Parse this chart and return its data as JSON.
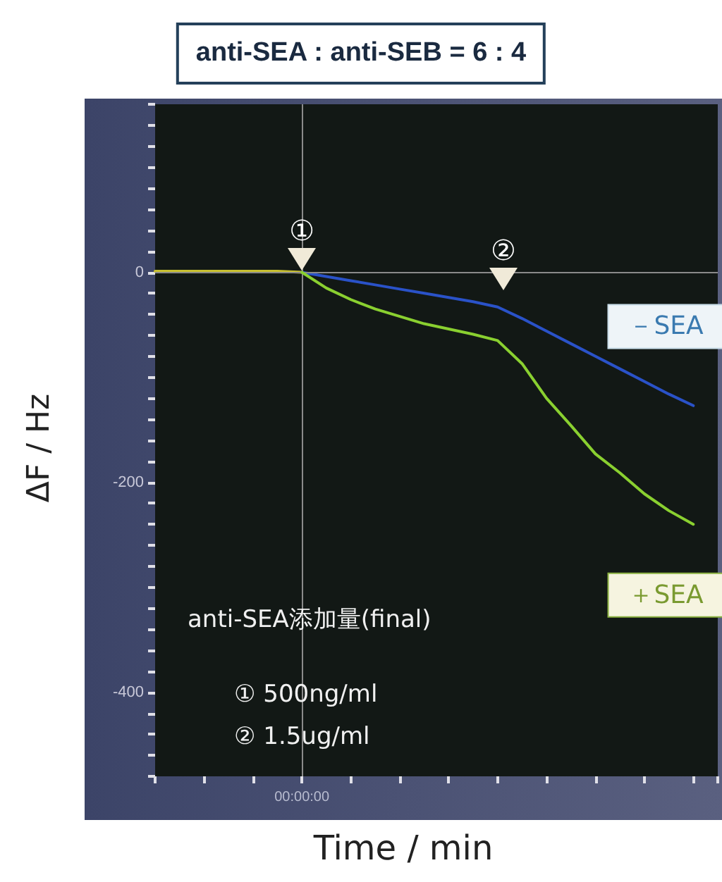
{
  "chart_data": {
    "type": "line",
    "title": "anti-SEA : anti-SEB = 6 : 4",
    "xlabel": "Time / min",
    "ylabel": "ΔF / Hz",
    "categories": [
      null,
      null,
      null,
      null,
      null,
      null,
      "00:00:00",
      null,
      null,
      null,
      null,
      null,
      null,
      null,
      null,
      null,
      null,
      null,
      null,
      null,
      null,
      null,
      null,
      null
    ],
    "ylim": [
      -480,
      160
    ],
    "yticks": [
      {
        "value": -480,
        "label": null
      },
      {
        "value": -460,
        "label": null
      },
      {
        "value": -440,
        "label": null
      },
      {
        "value": -420,
        "label": null
      },
      -400,
      {
        "value": -380,
        "label": null
      },
      {
        "value": -360,
        "label": null
      },
      {
        "value": -340,
        "label": null
      },
      {
        "value": -320,
        "label": null
      },
      {
        "value": -300,
        "label": null
      },
      {
        "value": -280,
        "label": null
      },
      {
        "value": -260,
        "label": null
      },
      {
        "value": -240,
        "label": null
      },
      {
        "value": -220,
        "label": null
      },
      -200,
      {
        "value": -180,
        "label": null
      },
      {
        "value": -160,
        "label": null
      },
      {
        "value": -140,
        "label": null
      },
      {
        "value": -120,
        "label": null
      },
      {
        "value": -100,
        "label": null
      },
      {
        "value": -80,
        "label": null
      },
      {
        "value": -60,
        "label": null
      },
      {
        "value": -40,
        "label": null
      },
      {
        "value": -20,
        "label": null
      },
      0,
      {
        "value": 20,
        "label": null
      },
      {
        "value": 40,
        "label": null
      },
      {
        "value": 60,
        "label": null
      },
      {
        "value": 80,
        "label": null
      },
      {
        "value": 100,
        "label": null
      },
      {
        "value": 120,
        "label": null
      },
      {
        "value": 140,
        "label": null
      },
      {
        "value": 160,
        "label": null
      }
    ],
    "grid": false,
    "marker": "none",
    "line_style": "solid",
    "series": [
      {
        "color": "#c8c030",
        "values": [
          1,
          1,
          1,
          1,
          1,
          1,
          0,
          null,
          null,
          null,
          null,
          null,
          null,
          null,
          null,
          null,
          null,
          null,
          null,
          null,
          null,
          null,
          null,
          null
        ]
      },
      {
        "name": "－SEA",
        "color": "#2a52c8",
        "values": [
          null,
          null,
          null,
          null,
          null,
          null,
          0,
          -4,
          -8,
          -12,
          -16,
          -20,
          -24,
          -28,
          -33,
          -44,
          -56,
          -68,
          -80,
          -92,
          -104,
          -116,
          -127,
          null
        ]
      },
      {
        "name": "＋SEA",
        "color": "#8ad030",
        "values": [
          null,
          null,
          null,
          null,
          null,
          null,
          0,
          -15,
          -26,
          -35,
          -42,
          -49,
          -54,
          -59,
          -65,
          -87,
          -120,
          -146,
          -173,
          -191,
          -211,
          -227,
          -240,
          null
        ]
      }
    ],
    "ref_lines": [
      {
        "axis": "x",
        "value": "00:00:00",
        "color": "#8a8a8a"
      },
      {
        "axis": "y",
        "value": 0,
        "color": "#8a8a8a"
      }
    ],
    "annotations": [
      {
        "text": "①",
        "x": "00:00:00",
        "y": 0
      },
      {
        "text": "②",
        "y": 0
      },
      "anti-SEA添加量(final)",
      "① 500ng/ml",
      "② 1.5ug/ml"
    ]
  }
}
